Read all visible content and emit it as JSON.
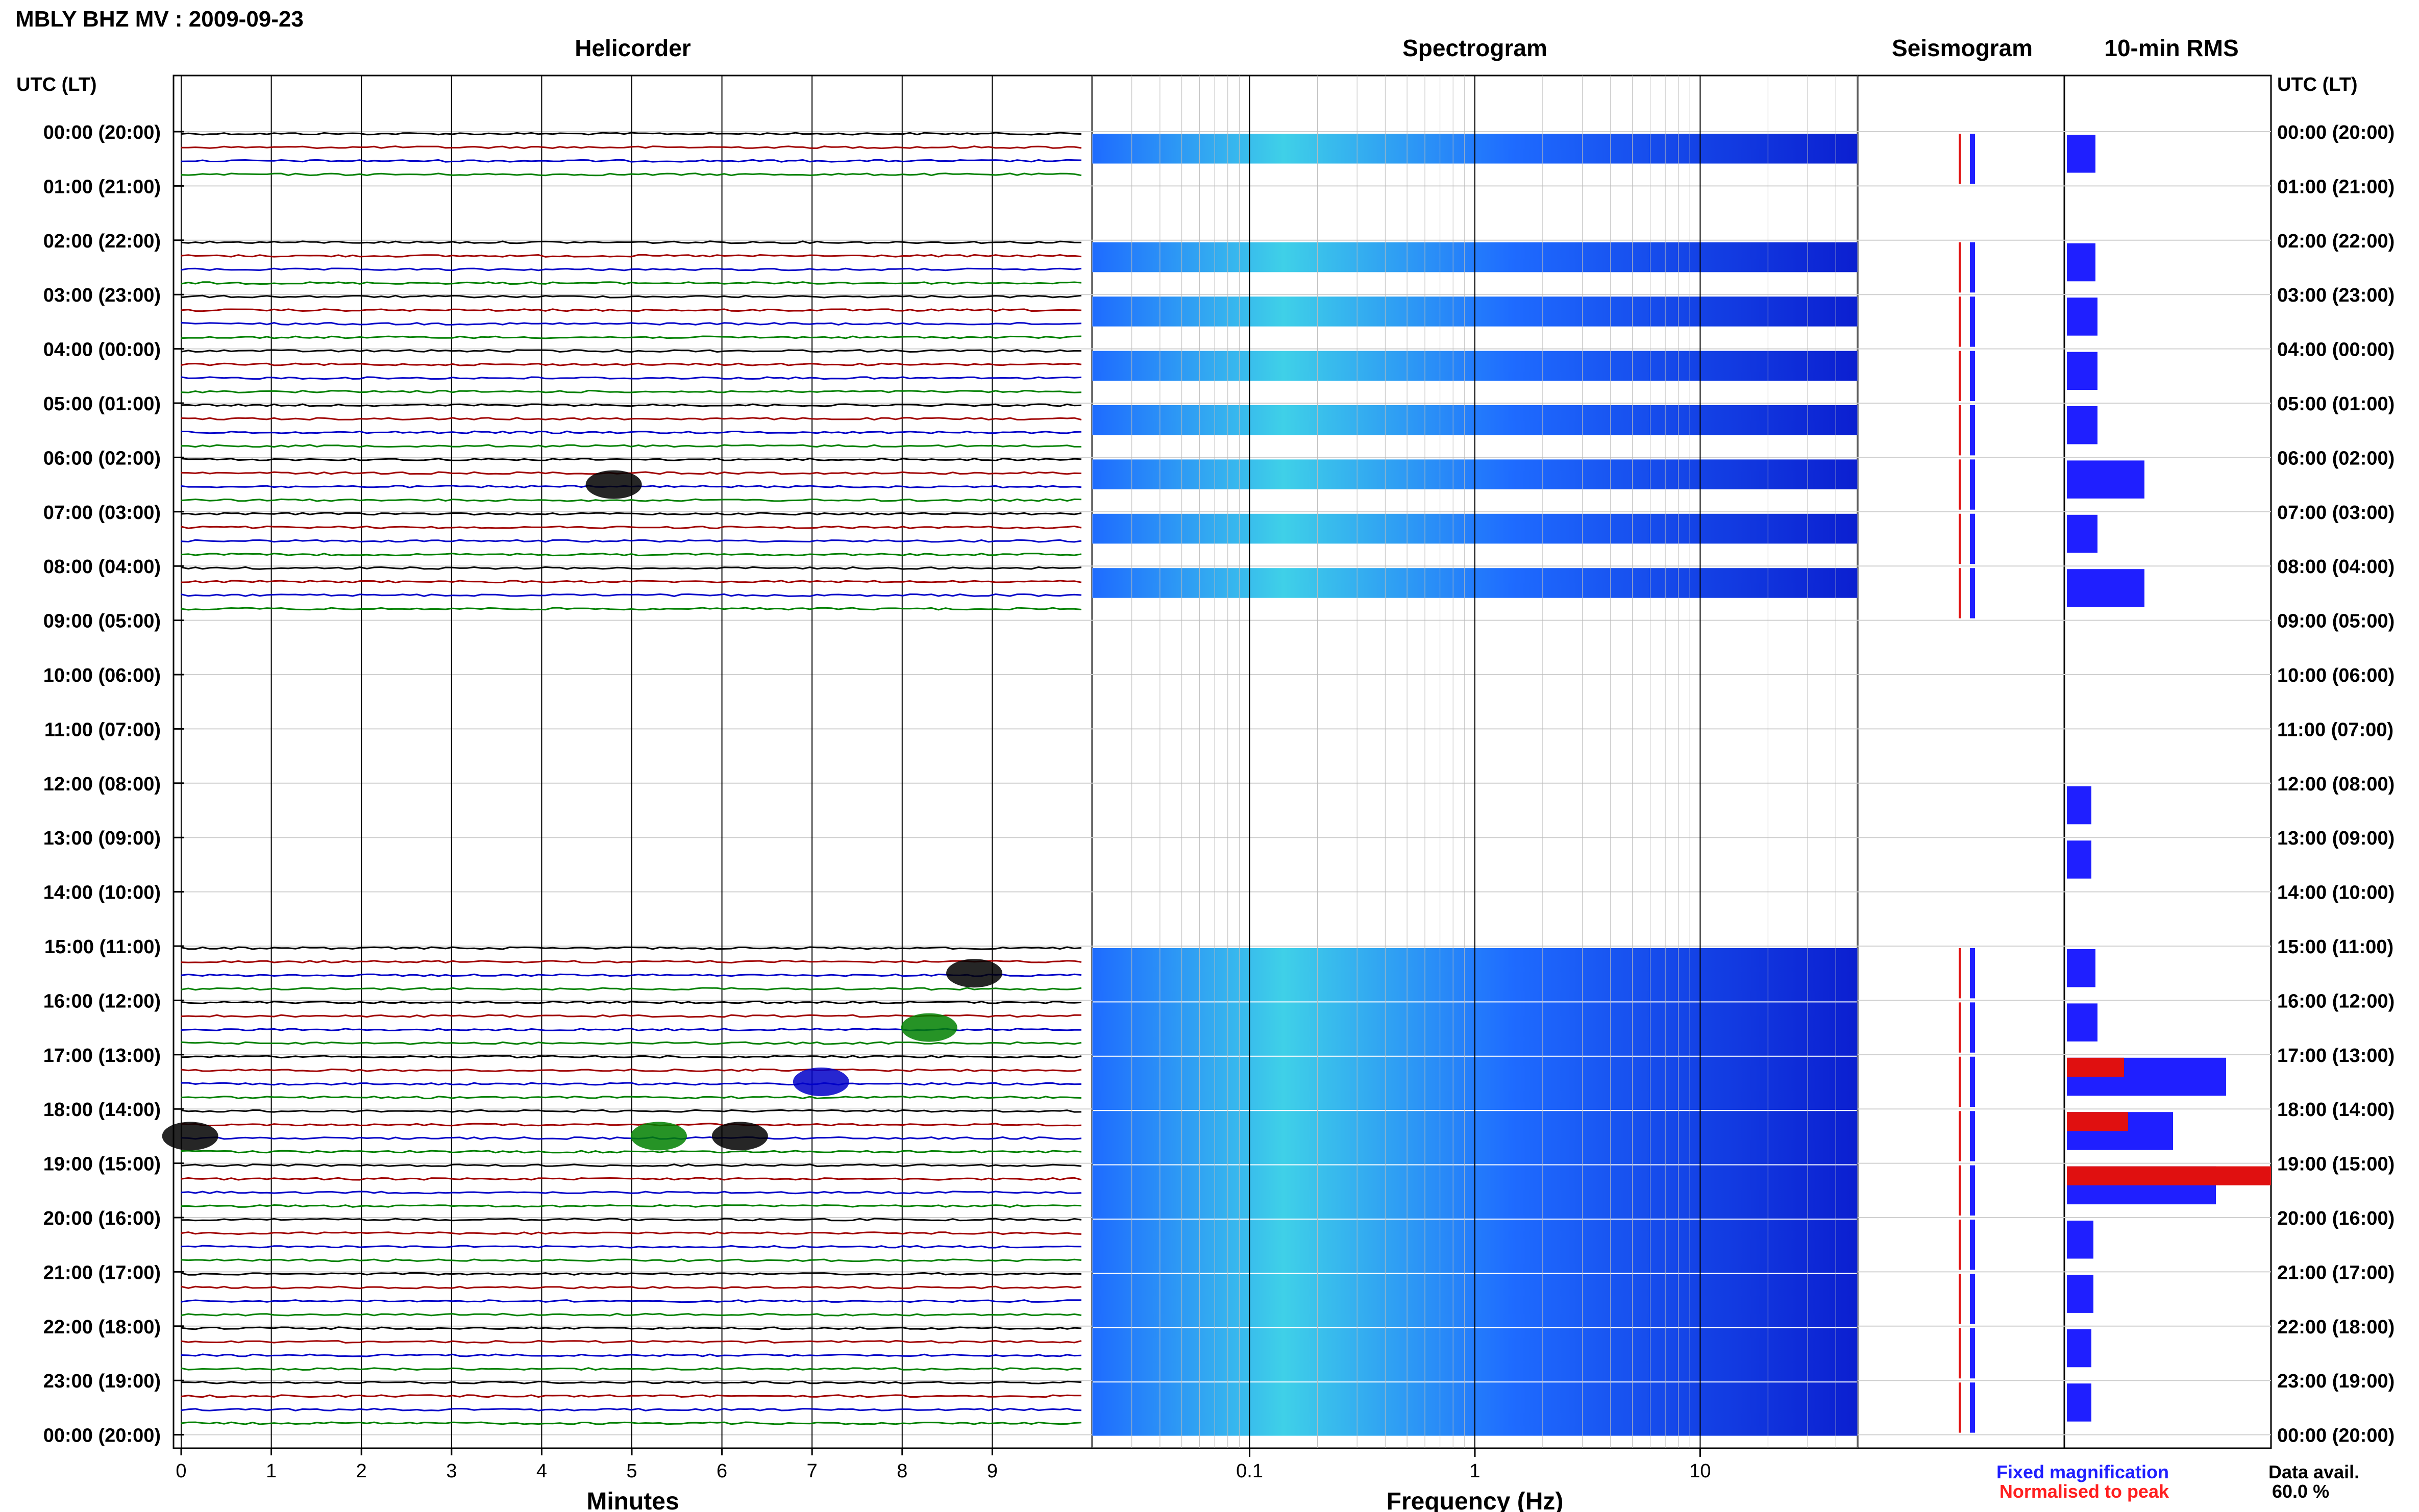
{
  "header": {
    "title": "MBLY BHZ MV : 2009-09-23"
  },
  "panels": {
    "helicorder": "Helicorder",
    "spectrogram": "Spectrogram",
    "seismogram": "Seismogram",
    "rms": "10-min RMS"
  },
  "axis": {
    "utc_label_left": "UTC (LT)",
    "utc_label_right": "UTC (LT)",
    "minutes_label": "Minutes",
    "frequency_label": "Frequency (Hz)"
  },
  "legend": {
    "fixed": "Fixed magnification",
    "normalised": "Normalised to peak",
    "fixed_color": "#1f1fff",
    "normalised_color": "#ff1f1f"
  },
  "data_avail": {
    "label": "Data avail.",
    "value": "60.0 %"
  },
  "colors": {
    "trace_black": "#000000",
    "trace_red": "#a00000",
    "trace_blue": "#0000c8",
    "trace_green": "#008000",
    "spec_dark": "#0b1fd0",
    "spec_mid": "#1e6bff",
    "spec_light": "#3fd0e8",
    "rms_blue": "#1f1fff",
    "rms_red": "#e01010"
  },
  "chart_data": {
    "type": "heatmap",
    "time_ticks": [
      "00:00 (20:00)",
      "01:00 (21:00)",
      "02:00 (22:00)",
      "03:00 (23:00)",
      "04:00 (00:00)",
      "05:00 (01:00)",
      "06:00 (02:00)",
      "07:00 (03:00)",
      "08:00 (04:00)",
      "09:00 (05:00)",
      "10:00 (06:00)",
      "11:00 (07:00)",
      "12:00 (08:00)",
      "13:00 (09:00)",
      "14:00 (10:00)",
      "15:00 (11:00)",
      "16:00 (12:00)",
      "17:00 (13:00)",
      "18:00 (14:00)",
      "19:00 (15:00)",
      "20:00 (16:00)",
      "21:00 (17:00)",
      "22:00 (18:00)",
      "23:00 (19:00)",
      "00:00 (20:00)"
    ],
    "minutes_ticks": [
      "0",
      "1",
      "2",
      "3",
      "4",
      "5",
      "6",
      "7",
      "8",
      "9"
    ],
    "minutes_range": [
      0,
      10
    ],
    "frequency_ticks": [
      "0.1",
      "1",
      "10"
    ],
    "frequency_range": [
      0.02,
      50
    ],
    "frequency_scale": "log",
    "data_hours": [
      0,
      2,
      3,
      4,
      5,
      6,
      7,
      8,
      15,
      16,
      17,
      18,
      19,
      20,
      21,
      22,
      23
    ],
    "events": [
      {
        "hour": 6,
        "minute": 4.8,
        "color": "black"
      },
      {
        "hour": 15,
        "minute": 8.8,
        "color": "black"
      },
      {
        "hour": 16,
        "minute": 8.3,
        "color": "green"
      },
      {
        "hour": 17,
        "minute": 7.1,
        "color": "blue"
      },
      {
        "hour": 18,
        "minute": 6.2,
        "color": "black"
      },
      {
        "hour": 18,
        "minute": 5.3,
        "color": "green"
      },
      {
        "hour": 18,
        "minute": 0.1,
        "color": "black"
      }
    ],
    "rms_fixed": [
      {
        "hour": 0,
        "value": 0.14
      },
      {
        "hour": 2,
        "value": 0.14
      },
      {
        "hour": 3,
        "value": 0.15
      },
      {
        "hour": 4,
        "value": 0.15
      },
      {
        "hour": 5,
        "value": 0.15
      },
      {
        "hour": 6,
        "value": 0.38
      },
      {
        "hour": 7,
        "value": 0.15
      },
      {
        "hour": 8,
        "value": 0.38
      },
      {
        "hour": 12,
        "value": 0.12
      },
      {
        "hour": 13,
        "value": 0.12
      },
      {
        "hour": 15,
        "value": 0.14
      },
      {
        "hour": 16,
        "value": 0.15
      },
      {
        "hour": 17,
        "value": 0.78
      },
      {
        "hour": 18,
        "value": 0.52
      },
      {
        "hour": 19,
        "value": 0.73
      },
      {
        "hour": 20,
        "value": 0.13
      },
      {
        "hour": 21,
        "value": 0.13
      },
      {
        "hour": 22,
        "value": 0.12
      },
      {
        "hour": 23,
        "value": 0.12
      }
    ],
    "rms_normalised": [
      {
        "hour": 17,
        "value": 0.28
      },
      {
        "hour": 18,
        "value": 0.3
      },
      {
        "hour": 19,
        "value": 1.0
      }
    ]
  }
}
